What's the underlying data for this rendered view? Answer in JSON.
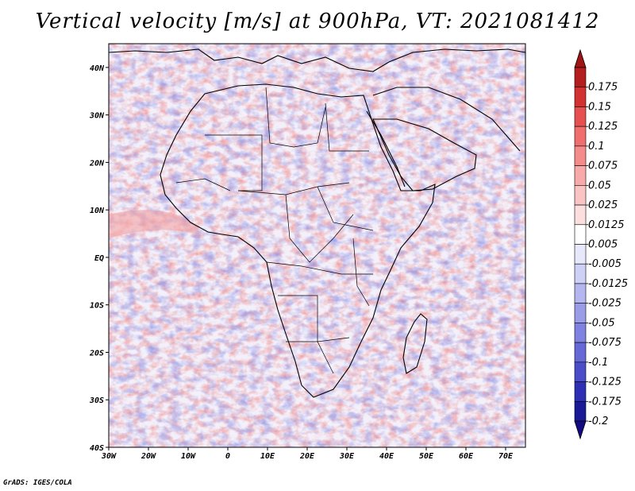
{
  "title": "Vertical velocity [m/s] at 900hPa, VT: 2021081412",
  "credit": "GrADS: IGES/COLA",
  "map": {
    "lon_range": [
      -30,
      75
    ],
    "lat_range": [
      -40,
      45
    ],
    "x_tick_labels": [
      "30W",
      "20W",
      "10W",
      "0",
      "10E",
      "20E",
      "30E",
      "40E",
      "50E",
      "60E",
      "70E"
    ],
    "y_tick_labels": [
      "40S",
      "30S",
      "20S",
      "10S",
      "EQ",
      "10N",
      "20N",
      "30N",
      "40N"
    ],
    "field": "vertical velocity",
    "shading": "red = positive, blue = negative, white near zero"
  },
  "colorbar": {
    "levels": [
      "0.175",
      "0.15",
      "0.125",
      "0.1",
      "0.075",
      "0.05",
      "0.025",
      "0.0125",
      "0.005",
      "-0.005",
      "-0.0125",
      "-0.025",
      "-0.05",
      "-0.075",
      "-0.1",
      "-0.125",
      "-0.175",
      "-0.2"
    ],
    "colors": [
      "#b41e1e",
      "#d23232",
      "#e65050",
      "#f06e6e",
      "#f58c8c",
      "#f8aaaa",
      "#fbc4c4",
      "#fddede",
      "#ffffff",
      "#e8e8fb",
      "#cfd0f6",
      "#b4b6f0",
      "#9a9ce8",
      "#7f82e0",
      "#6668d8",
      "#4a4cc8",
      "#2e2eb4",
      "#1a1a96"
    ],
    "top_arrow_color": "#a01414",
    "bottom_arrow_color": "#120a82"
  }
}
